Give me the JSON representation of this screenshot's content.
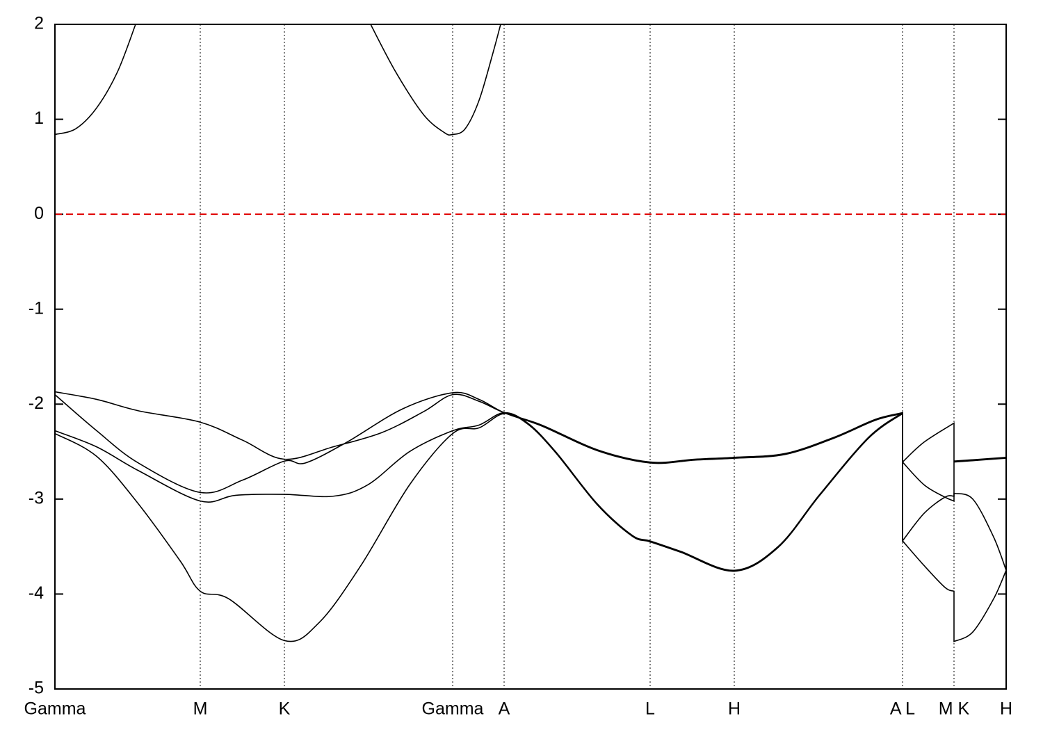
{
  "chart_data": {
    "type": "line",
    "xlim": [
      0,
      1368
    ],
    "ylim": [
      -5,
      2
    ],
    "yticks": [
      -5,
      -4,
      -3,
      -2,
      -1,
      0,
      1,
      2
    ],
    "xticks": [
      {
        "value": 0,
        "label": "Gamma"
      },
      {
        "value": 209,
        "label": "M"
      },
      {
        "value": 330,
        "label": "K"
      },
      {
        "value": 572,
        "label": "Gamma"
      },
      {
        "value": 646,
        "label": "A"
      },
      {
        "value": 856,
        "label": "L"
      },
      {
        "value": 977,
        "label": "H"
      },
      {
        "value": 1219,
        "label": "A L"
      },
      {
        "value": 1293,
        "label": "M K"
      },
      {
        "value": 1368,
        "label": "H"
      }
    ],
    "xgrid": true,
    "hline": {
      "value": 0,
      "color": "#e00000",
      "dashed": true
    },
    "series": [
      {
        "color": "#000000",
        "x": [
          0,
          30,
          60,
          90,
          116,
          null,
          454,
          490,
          530,
          560,
          572,
          590,
          610,
          630,
          641
        ],
        "values": [
          0.84,
          0.9,
          1.12,
          1.5,
          2.0,
          null,
          2.0,
          1.5,
          1.05,
          0.86,
          0.84,
          0.9,
          1.2,
          1.7,
          2.0
        ]
      },
      {
        "color": "#000000",
        "x": [
          0,
          60,
          120,
          209,
          270,
          330,
          400,
          470,
          530,
          572,
          610,
          646,
          700,
          780,
          856,
          920,
          977,
          1050,
          1120,
          1180,
          1219,
          1219,
          1250,
          1293,
          1293,
          1368
        ],
        "values": [
          -1.87,
          -1.95,
          -2.07,
          -2.19,
          -2.38,
          -2.58,
          -2.45,
          -2.3,
          -2.08,
          -1.9,
          -1.97,
          -2.09,
          -2.22,
          -2.48,
          -2.61,
          -2.58,
          -2.56,
          -2.52,
          -2.35,
          -2.16,
          -2.09,
          -2.61,
          -2.4,
          -2.2,
          -2.6,
          -2.56
        ]
      },
      {
        "color": "#000000",
        "x": [
          0,
          60,
          120,
          209,
          270,
          330,
          360,
          420,
          500,
          572,
          610,
          646,
          700,
          780,
          856,
          920,
          977,
          1050,
          1120,
          1180,
          1219,
          1219,
          1250,
          1280,
          1293,
          1293,
          1368
        ],
        "values": [
          -1.9,
          -2.28,
          -2.62,
          -2.93,
          -2.8,
          -2.6,
          -2.62,
          -2.4,
          -2.05,
          -1.88,
          -1.95,
          -2.09,
          -2.23,
          -2.49,
          -2.62,
          -2.59,
          -2.57,
          -2.53,
          -2.36,
          -2.17,
          -2.1,
          -2.61,
          -2.85,
          -2.98,
          -3.02,
          -2.61,
          -2.57
        ]
      },
      {
        "color": "#000000",
        "x": [
          0,
          60,
          120,
          209,
          260,
          330,
          400,
          450,
          510,
          572,
          610,
          646,
          680,
          720,
          780,
          830,
          856,
          900,
          977,
          1040,
          1100,
          1170,
          1219,
          1219,
          1250,
          1280,
          1293,
          1293,
          1320,
          1350,
          1368
        ],
        "values": [
          -2.28,
          -2.45,
          -2.7,
          -3.02,
          -2.96,
          -2.95,
          -2.97,
          -2.85,
          -2.5,
          -2.28,
          -2.22,
          -2.09,
          -2.2,
          -2.5,
          -3.05,
          -3.38,
          -3.44,
          -3.55,
          -3.75,
          -3.5,
          -2.95,
          -2.35,
          -2.09,
          -3.44,
          -3.15,
          -2.98,
          -2.97,
          -2.94,
          -3.0,
          -3.4,
          -3.75
        ]
      },
      {
        "color": "#000000",
        "x": [
          0,
          60,
          120,
          180,
          209,
          250,
          330,
          380,
          440,
          510,
          572,
          610,
          646,
          680,
          720,
          780,
          830,
          856,
          900,
          977,
          1040,
          1100,
          1170,
          1219,
          1219,
          1250,
          1280,
          1293,
          1293,
          1320,
          1350,
          1368
        ],
        "values": [
          -2.31,
          -2.55,
          -3.05,
          -3.65,
          -3.97,
          -4.05,
          -4.49,
          -4.3,
          -3.7,
          -2.85,
          -2.31,
          -2.25,
          -2.1,
          -2.21,
          -2.51,
          -3.06,
          -3.39,
          -3.45,
          -3.56,
          -3.76,
          -3.51,
          -2.96,
          -2.36,
          -2.1,
          -3.44,
          -3.7,
          -3.93,
          -3.97,
          -4.5,
          -4.4,
          -4.05,
          -3.75
        ]
      }
    ]
  }
}
